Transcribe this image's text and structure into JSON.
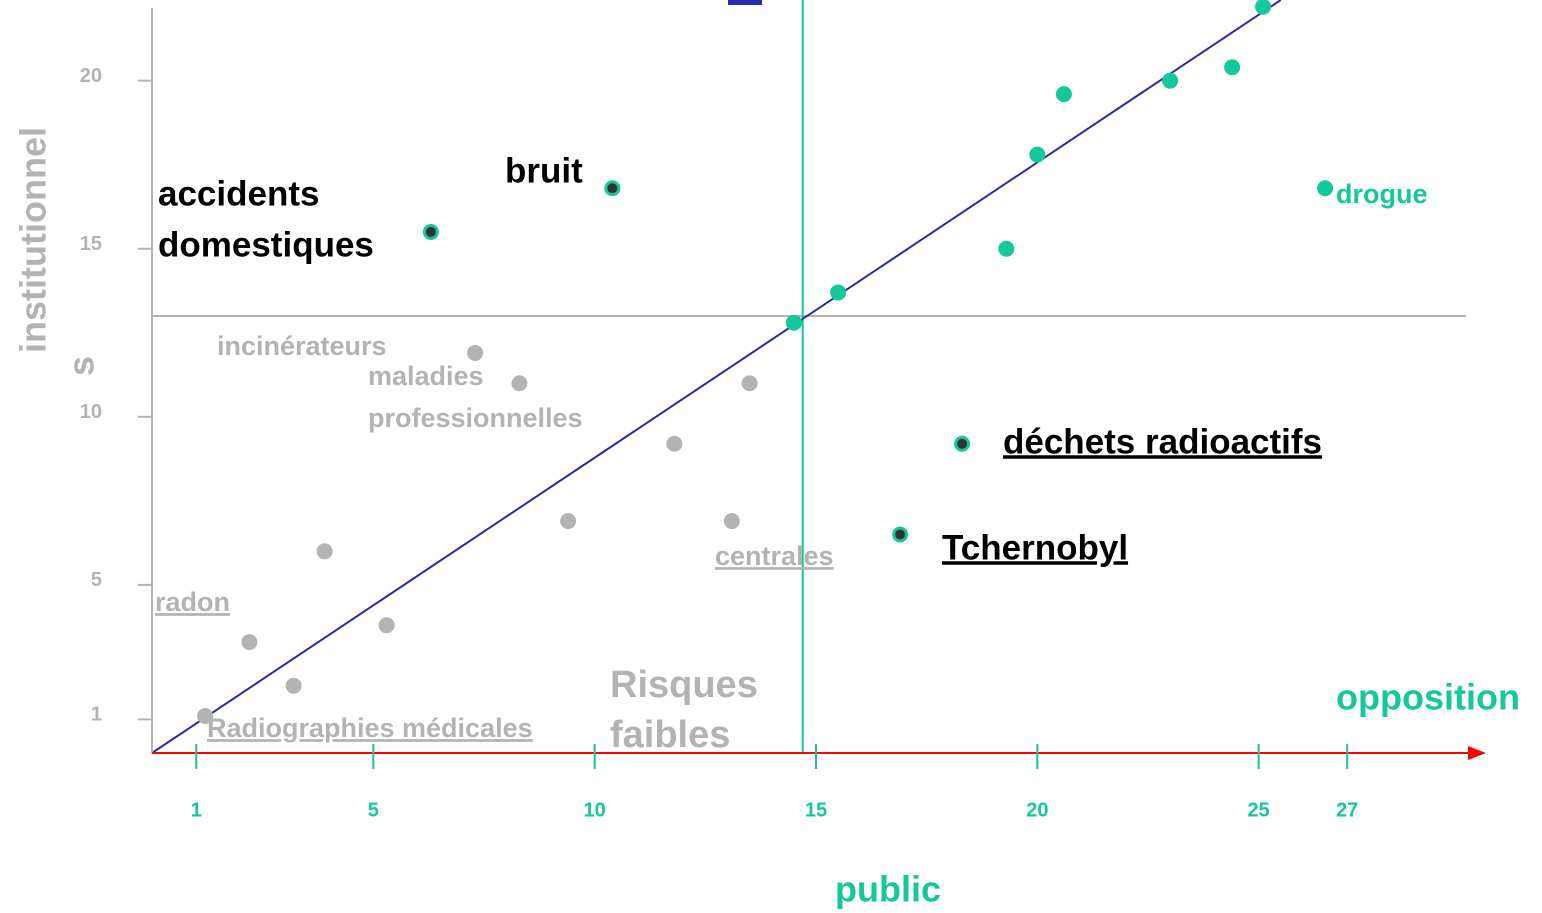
{
  "chart_data": {
    "type": "scatter",
    "xlabel": "public",
    "x2label": "opposition",
    "ylabel": [
      "institutionnel",
      "s"
    ],
    "xlim": [
      0,
      30
    ],
    "ylim": [
      0,
      22.4
    ],
    "xticks": [
      1,
      5,
      10,
      15,
      20,
      25,
      27
    ],
    "yticks": [
      1,
      5,
      10,
      15,
      20
    ],
    "reference_lines": {
      "x": 14.7,
      "y": 13.0,
      "x_color": "#14c89a",
      "y_color": "#b3b3b3"
    },
    "diagonal": {
      "x": [
        0,
        25.5
      ],
      "y": [
        0,
        22.4
      ],
      "color": "#2a2ab0"
    },
    "series": [
      {
        "color": "#b3b3b3",
        "x": [
          1.2,
          2.2,
          3.2,
          3.9,
          5.3,
          7.3,
          8.3,
          9.4,
          11.8,
          13.1,
          13.5
        ],
        "y": [
          1.1,
          3.3,
          2.0,
          6.0,
          3.8,
          11.9,
          11.0,
          6.9,
          9.2,
          6.9,
          11.0
        ]
      },
      {
        "color": "#14c89a",
        "x": [
          14.5,
          15.5,
          19.3,
          20.0,
          20.6,
          23.0,
          24.4,
          25.1,
          26.5
        ],
        "y": [
          12.8,
          13.7,
          15.0,
          17.8,
          19.6,
          20.0,
          20.4,
          22.2,
          16.8
        ]
      },
      {
        "color": "#333333",
        "x": [
          6.3,
          10.4,
          16.9,
          18.3
        ],
        "y": [
          15.5,
          16.8,
          6.5,
          9.2
        ]
      }
    ],
    "annotations": [
      "incinérateurs",
      "maladies",
      "professionnelles",
      "radon",
      "centrales",
      "Radiographies médicales",
      "accidents",
      "domestiques",
      "bruit",
      "drogue",
      "déchets radioactifs",
      "Tchernobyl",
      "Risques",
      "faibles"
    ]
  }
}
